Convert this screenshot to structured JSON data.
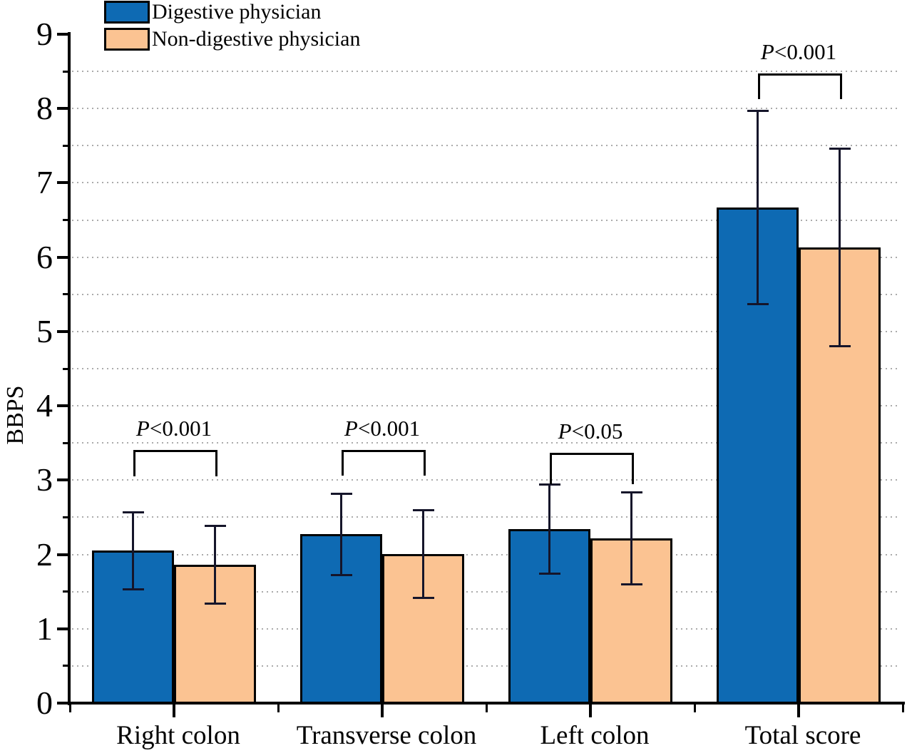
{
  "chart_data": {
    "type": "bar",
    "title": "",
    "xlabel": "",
    "ylabel": "BBPS",
    "ylim": [
      0,
      9
    ],
    "y_major_tick_step": 1,
    "y_minor_tick_step": 0.5,
    "grid": {
      "show": true,
      "orientation": "horizontal",
      "interval": 0.5,
      "style": "dotted",
      "color": "#8f8f8f"
    },
    "legend_position": "top-left",
    "categories": [
      "Right colon",
      "Transverse colon",
      "Left colon",
      "Total score"
    ],
    "series": [
      {
        "name": "Digestive physician",
        "color": "#0e6ab3",
        "values": [
          2.05,
          2.27,
          2.34,
          6.67
        ],
        "errors": [
          0.52,
          0.55,
          0.6,
          1.3
        ]
      },
      {
        "name": "Non-digestive physician",
        "color": "#fbc392",
        "values": [
          1.86,
          2.01,
          2.22,
          6.13
        ],
        "errors": [
          0.52,
          0.59,
          0.62,
          1.33
        ]
      }
    ],
    "error_bar_color": "#15152a",
    "significance": [
      {
        "category": "Right colon",
        "label": "P<0.001",
        "bracket_top": 3.41,
        "bracket_bottom": 3.05
      },
      {
        "category": "Transverse colon",
        "label": "P<0.001",
        "bracket_top": 3.41,
        "bracket_bottom": 3.06
      },
      {
        "category": "Left colon",
        "label": "P<0.05",
        "bracket_top": 3.37,
        "bracket_bottom": 2.95
      },
      {
        "category": "Total score",
        "label": "P<0.001",
        "bracket_top": 8.47,
        "bracket_bottom": 8.13
      }
    ]
  }
}
